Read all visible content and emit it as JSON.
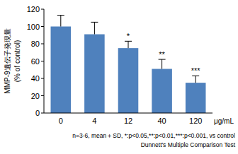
{
  "chart_data": {
    "type": "bar",
    "categories": [
      "0",
      "4",
      "12",
      "40",
      "120"
    ],
    "values": [
      100,
      91,
      75,
      51,
      35
    ],
    "errors": [
      13,
      14,
      8,
      11,
      8
    ],
    "significance": [
      null,
      null,
      "*",
      "**",
      "***"
    ],
    "color": "#4f81bd",
    "x_label": "μg/mL",
    "y_label": [
      "MMP-9遺伝子発現量",
      "(% of control)"
    ],
    "ylim": [
      0,
      120
    ],
    "yticks": [
      0,
      20,
      40,
      60,
      80,
      100,
      120
    ],
    "grid": false,
    "notes": [
      "n=3-6, mean＋SD, *:p<0.05,**:p<0.01,***:p<0.001, vs control",
      "Dunnett's Multiple Comparison Test"
    ]
  }
}
